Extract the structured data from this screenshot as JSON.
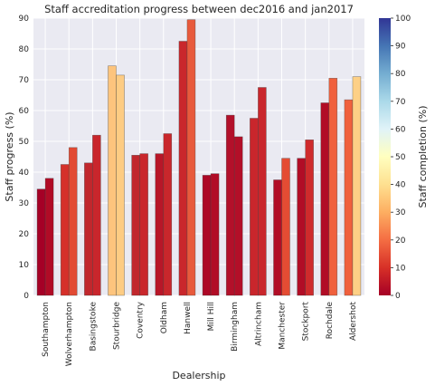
{
  "chart_data": {
    "type": "bar",
    "title": "Staff accreditation progress between dec2016 and jan2017",
    "xlabel": "Dealership",
    "ylabel": "Staff progress (%)",
    "ylim": [
      0,
      90
    ],
    "yticks": [
      0,
      10,
      20,
      30,
      40,
      50,
      60,
      70,
      80,
      90
    ],
    "grid": true,
    "categories": [
      "Southampton",
      "Wolverhampton",
      "Basingstoke",
      "Stourbridge",
      "Coventry",
      "Oldham",
      "Hanwell",
      "Mill Hill",
      "Birmingham",
      "Altrincham",
      "Manchester",
      "Stockport",
      "Rochdale",
      "Aldershot"
    ],
    "series": [
      {
        "values": [
          34.5,
          42.5,
          43,
          74.5,
          45.5,
          46,
          82.5,
          39,
          58.5,
          57.5,
          37.5,
          44.5,
          62.5,
          63.5
        ]
      },
      {
        "values": [
          38,
          48,
          52,
          71.5,
          46,
          52.5,
          89.5,
          39.5,
          51.5,
          67.5,
          44.5,
          50.5,
          70.5,
          71
        ]
      }
    ],
    "colorbar": {
      "label": "Staff completion (%)",
      "range": [
        0,
        100
      ],
      "ticks": [
        0,
        10,
        20,
        30,
        40,
        50,
        60,
        70,
        80,
        90,
        100
      ],
      "colormap": "RdYlBu",
      "stops": [
        "#a50026",
        "#d73027",
        "#f46d43",
        "#fdae61",
        "#fee090",
        "#ffffbf",
        "#e0f3f8",
        "#abd9e9",
        "#74add1",
        "#4575b4",
        "#313695"
      ]
    },
    "bar_colors": [
      [
        "#a50026",
        "#b10b26"
      ],
      [
        "#d5302a",
        "#e24a33"
      ],
      [
        "#c1272d",
        "#c9262c"
      ],
      [
        "#fdc47d",
        "#fdcc83"
      ],
      [
        "#c1272d",
        "#c9272c"
      ],
      [
        "#b81628",
        "#c9272c"
      ],
      [
        "#c9272c",
        "#e85a3c"
      ],
      [
        "#ad0826",
        "#b10d26"
      ],
      [
        "#b3102a",
        "#b30f28"
      ],
      [
        "#c9262c",
        "#c9262c"
      ],
      [
        "#b10d26",
        "#e44c33"
      ],
      [
        "#b10d26",
        "#cf2b2c"
      ],
      [
        "#b10d26",
        "#f0603d"
      ],
      [
        "#f0603d",
        "#fdd086"
      ]
    ]
  }
}
